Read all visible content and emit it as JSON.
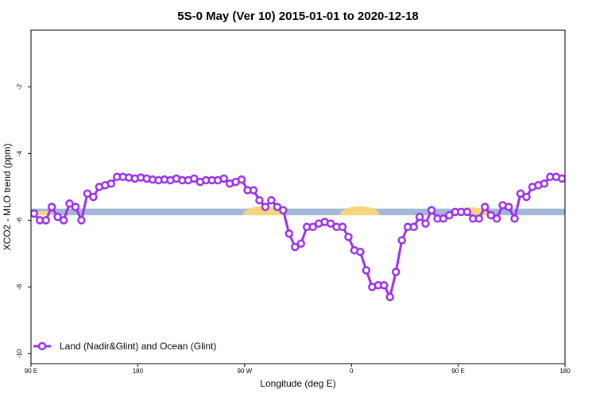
{
  "chart_data": {
    "type": "line",
    "title": "5S-0 May (Ver 10)   2015-01-01 to 2020-12-18",
    "xlabel": "Longitude (deg E)",
    "ylabel": "XCO2 - MLO trend (ppm)",
    "xlim": [
      90,
      450
    ],
    "ylim": [
      -10.3,
      -0.3
    ],
    "x_ticks": [
      {
        "value": 90,
        "label": "90 E"
      },
      {
        "value": 162,
        "label": "180"
      },
      {
        "value": 234,
        "label": "90 W"
      },
      {
        "value": 306,
        "label": "0"
      },
      {
        "value": 378,
        "label": "90 E"
      },
      {
        "value": 450,
        "label": "180"
      }
    ],
    "y_ticks": [
      {
        "value": -2,
        "label": "-2"
      },
      {
        "value": -4,
        "label": "-4"
      },
      {
        "value": -6,
        "label": "-6"
      },
      {
        "value": -8,
        "label": "-8"
      },
      {
        "value": -10,
        "label": "-10"
      }
    ],
    "grid": false,
    "legend": {
      "position": "bottom-left",
      "entries": [
        "Land (Nadir&Glint) and Ocean (Glint)"
      ]
    },
    "band": {
      "y_low": -5.85,
      "y_high": -5.65,
      "color": "#a3b8d8"
    },
    "land_color": "#f5d57a",
    "land_regions": [
      [
        92,
        105
      ],
      [
        233,
        260
      ],
      [
        298,
        325
      ],
      [
        374,
        398
      ]
    ],
    "series": [
      {
        "name": "Land (Nadir&Glint) and Ocean (Glint)",
        "color": "#9b30ee",
        "x": [
          92,
          96,
          100,
          104,
          108,
          112,
          116,
          120,
          124,
          128,
          132,
          136,
          140,
          144,
          148,
          152,
          156,
          160,
          164,
          168,
          172,
          176,
          180,
          184,
          188,
          192,
          196,
          200,
          204,
          208,
          212,
          216,
          220,
          224,
          228,
          232,
          236,
          240,
          244,
          248,
          252,
          256,
          260,
          264,
          268,
          272,
          276,
          280,
          284,
          288,
          292,
          296,
          300,
          304,
          308,
          312,
          316,
          320,
          324,
          328,
          332,
          336,
          340,
          344,
          348,
          352,
          356,
          360,
          364,
          368,
          372,
          376,
          380,
          384,
          388,
          392,
          396,
          400,
          404,
          408,
          412,
          416,
          420,
          424,
          428,
          432,
          436,
          440,
          444,
          448
        ],
        "y": [
          -5.8,
          -6,
          -6,
          -5.6,
          -5.9,
          -6,
          -5.5,
          -5.6,
          -6,
          -5.2,
          -5.3,
          -5,
          -4.95,
          -4.9,
          -4.7,
          -4.7,
          -4.72,
          -4.75,
          -4.72,
          -4.75,
          -4.78,
          -4.8,
          -4.78,
          -4.8,
          -4.75,
          -4.8,
          -4.8,
          -4.75,
          -4.85,
          -4.8,
          -4.8,
          -4.8,
          -4.75,
          -4.9,
          -4.85,
          -4.78,
          -5.1,
          -5.1,
          -5.4,
          -5.6,
          -5.4,
          -5.6,
          -5.7,
          -6.4,
          -6.8,
          -6.7,
          -6.2,
          -6.2,
          -6.1,
          -6.05,
          -6.1,
          -6.2,
          -6.2,
          -6.5,
          -6.9,
          -6.95,
          -7.5,
          -8,
          -7.95,
          -7.95,
          -8.3,
          -7.55,
          -6.6,
          -6.2,
          -6.2,
          -5.9,
          -6.1,
          -5.7,
          -5.95,
          -5.95,
          -5.85,
          -5.75,
          -5.75,
          -5.75,
          -5.95,
          -5.95,
          -5.6,
          -5.85,
          -5.95,
          -5.55,
          -5.6,
          -5.95,
          -5.2,
          -5.3,
          -5,
          -4.95,
          -4.9,
          -4.7,
          -4.7,
          -4.75
        ]
      }
    ]
  }
}
